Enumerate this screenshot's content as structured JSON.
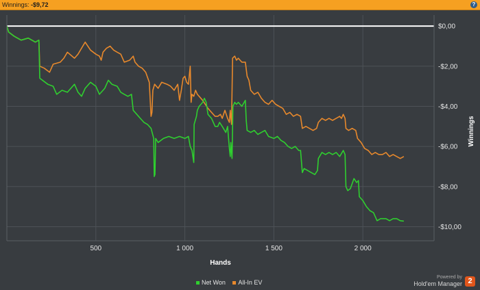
{
  "window": {
    "title_label": "Winnings:",
    "title_value": "-$9,72",
    "help_symbol": "?"
  },
  "chart_data": {
    "type": "line",
    "title": "",
    "xlabel": "Hands",
    "ylabel": "Winnings",
    "xlim": [
      0,
      2400
    ],
    "ylim": [
      -10.7,
      0.55
    ],
    "x_ticks": [
      500,
      1000,
      1500,
      2000
    ],
    "x_tick_labels": [
      "500",
      "1 000",
      "1 500",
      "2 000"
    ],
    "y_ticks": [
      0,
      -2,
      -4,
      -6,
      -8,
      -10
    ],
    "y_tick_labels": [
      "$0,00",
      "-$2,00",
      "-$4,00",
      "-$6,00",
      "-$8,00",
      "-$10,00"
    ],
    "grid": true,
    "legend_position": "bottom",
    "zero_line": {
      "y": 0,
      "color": "#ffffff"
    },
    "series": [
      {
        "name": "Net Won",
        "color": "#2fcf2f",
        "points": [
          [
            0,
            0
          ],
          [
            10,
            -0.3
          ],
          [
            40,
            -0.5
          ],
          [
            80,
            -0.7
          ],
          [
            120,
            -0.6
          ],
          [
            160,
            -0.8
          ],
          [
            180,
            -0.7
          ],
          [
            185,
            -2.6
          ],
          [
            200,
            -2.7
          ],
          [
            230,
            -2.9
          ],
          [
            260,
            -3
          ],
          [
            280,
            -3.4
          ],
          [
            310,
            -3.2
          ],
          [
            340,
            -3.3
          ],
          [
            380,
            -2.9
          ],
          [
            400,
            -3.3
          ],
          [
            420,
            -3.5
          ],
          [
            440,
            -3.1
          ],
          [
            470,
            -2.8
          ],
          [
            500,
            -3
          ],
          [
            520,
            -3.4
          ],
          [
            550,
            -3.1
          ],
          [
            570,
            -2.7
          ],
          [
            590,
            -2.9
          ],
          [
            620,
            -3
          ],
          [
            640,
            -3.3
          ],
          [
            660,
            -3.4
          ],
          [
            680,
            -3.5
          ],
          [
            700,
            -3.4
          ],
          [
            710,
            -4.2
          ],
          [
            730,
            -4.4
          ],
          [
            750,
            -4.6
          ],
          [
            770,
            -4.8
          ],
          [
            790,
            -4.9
          ],
          [
            810,
            -5.1
          ],
          [
            825,
            -5.6
          ],
          [
            828,
            -7.5
          ],
          [
            832,
            -7.4
          ],
          [
            836,
            -5.6
          ],
          [
            850,
            -5.8
          ],
          [
            880,
            -5.6
          ],
          [
            910,
            -5.5
          ],
          [
            940,
            -5.6
          ],
          [
            970,
            -5.5
          ],
          [
            1000,
            -5.6
          ],
          [
            1020,
            -5.5
          ],
          [
            1030,
            -6
          ],
          [
            1040,
            -6.2
          ],
          [
            1050,
            -6.8
          ],
          [
            1052,
            -4.9
          ],
          [
            1065,
            -4.5
          ],
          [
            1070,
            -4.2
          ],
          [
            1080,
            -4
          ],
          [
            1100,
            -3.8
          ],
          [
            1110,
            -3.6
          ],
          [
            1120,
            -3.8
          ],
          [
            1130,
            -4.4
          ],
          [
            1150,
            -4.6
          ],
          [
            1170,
            -5
          ],
          [
            1185,
            -5
          ],
          [
            1195,
            -4.8
          ],
          [
            1210,
            -5
          ],
          [
            1230,
            -5.3
          ],
          [
            1240,
            -5
          ],
          [
            1250,
            -6.1
          ],
          [
            1255,
            -6.5
          ],
          [
            1258,
            -5.8
          ],
          [
            1265,
            -6.6
          ],
          [
            1270,
            -4
          ],
          [
            1280,
            -3.8
          ],
          [
            1290,
            -3.9
          ],
          [
            1300,
            -3.8
          ],
          [
            1320,
            -4
          ],
          [
            1340,
            -3.7
          ],
          [
            1345,
            -4.7
          ],
          [
            1350,
            -5.2
          ],
          [
            1370,
            -5.3
          ],
          [
            1390,
            -5.2
          ],
          [
            1410,
            -5.4
          ],
          [
            1430,
            -5.3
          ],
          [
            1450,
            -5.2
          ],
          [
            1470,
            -5.5
          ],
          [
            1500,
            -5.6
          ],
          [
            1520,
            -5.5
          ],
          [
            1540,
            -5.7
          ],
          [
            1560,
            -5.8
          ],
          [
            1580,
            -6
          ],
          [
            1600,
            -6.1
          ],
          [
            1620,
            -6
          ],
          [
            1640,
            -6.2
          ],
          [
            1650,
            -6.2
          ],
          [
            1660,
            -7.3
          ],
          [
            1670,
            -7.1
          ],
          [
            1690,
            -7.2
          ],
          [
            1710,
            -7.3
          ],
          [
            1730,
            -7.4
          ],
          [
            1745,
            -7.2
          ],
          [
            1750,
            -6.6
          ],
          [
            1770,
            -6.3
          ],
          [
            1790,
            -6.4
          ],
          [
            1810,
            -6.3
          ],
          [
            1830,
            -6.4
          ],
          [
            1850,
            -6.3
          ],
          [
            1870,
            -6.5
          ],
          [
            1890,
            -6.2
          ],
          [
            1900,
            -6.4
          ],
          [
            1905,
            -8
          ],
          [
            1915,
            -8.2
          ],
          [
            1930,
            -8.1
          ],
          [
            1950,
            -7.6
          ],
          [
            1965,
            -7.8
          ],
          [
            1975,
            -7.7
          ],
          [
            1980,
            -8.5
          ],
          [
            2000,
            -8.7
          ],
          [
            2020,
            -9
          ],
          [
            2040,
            -9.2
          ],
          [
            2060,
            -9.3
          ],
          [
            2080,
            -9.7
          ],
          [
            2100,
            -9.6
          ],
          [
            2130,
            -9.6
          ],
          [
            2150,
            -9.7
          ],
          [
            2170,
            -9.6
          ],
          [
            2190,
            -9.6
          ],
          [
            2210,
            -9.7
          ],
          [
            2230,
            -9.72
          ]
        ]
      },
      {
        "name": "All-In EV",
        "color": "#e8892c",
        "points": [
          [
            0,
            0
          ],
          [
            10,
            -0.3
          ],
          [
            40,
            -0.5
          ],
          [
            80,
            -0.7
          ],
          [
            120,
            -0.6
          ],
          [
            160,
            -0.8
          ],
          [
            180,
            -0.7
          ],
          [
            185,
            -2
          ],
          [
            210,
            -2.1
          ],
          [
            240,
            -2.3
          ],
          [
            260,
            -1.9
          ],
          [
            300,
            -1.8
          ],
          [
            320,
            -1.6
          ],
          [
            340,
            -1.3
          ],
          [
            380,
            -1.6
          ],
          [
            400,
            -1.4
          ],
          [
            420,
            -1.1
          ],
          [
            440,
            -0.8
          ],
          [
            470,
            -1.2
          ],
          [
            500,
            -1.4
          ],
          [
            520,
            -1.5
          ],
          [
            530,
            -1.7
          ],
          [
            540,
            -1.3
          ],
          [
            560,
            -1.1
          ],
          [
            580,
            -1
          ],
          [
            600,
            -1.2
          ],
          [
            620,
            -1.3
          ],
          [
            640,
            -1.4
          ],
          [
            660,
            -1.8
          ],
          [
            690,
            -1.7
          ],
          [
            710,
            -1.5
          ],
          [
            720,
            -1.8
          ],
          [
            740,
            -2
          ],
          [
            760,
            -2.1
          ],
          [
            780,
            -2.3
          ],
          [
            800,
            -2.8
          ],
          [
            810,
            -4.5
          ],
          [
            815,
            -4.3
          ],
          [
            820,
            -3.2
          ],
          [
            830,
            -2.9
          ],
          [
            850,
            -3.1
          ],
          [
            870,
            -2.8
          ],
          [
            900,
            -2.9
          ],
          [
            920,
            -3
          ],
          [
            940,
            -3.2
          ],
          [
            960,
            -2.9
          ],
          [
            970,
            -3.7
          ],
          [
            980,
            -3.2
          ],
          [
            990,
            -2.6
          ],
          [
            1000,
            -2.5
          ],
          [
            1010,
            -2.8
          ],
          [
            1020,
            -2.9
          ],
          [
            1030,
            -2
          ],
          [
            1035,
            -3.8
          ],
          [
            1040,
            -3.4
          ],
          [
            1050,
            -3.5
          ],
          [
            1060,
            -3.2
          ],
          [
            1070,
            -3.4
          ],
          [
            1080,
            -3.5
          ],
          [
            1100,
            -3.7
          ],
          [
            1130,
            -4.1
          ],
          [
            1150,
            -4.3
          ],
          [
            1170,
            -4.5
          ],
          [
            1185,
            -4.5
          ],
          [
            1200,
            -4.4
          ],
          [
            1210,
            -4.6
          ],
          [
            1225,
            -4.2
          ],
          [
            1240,
            -4.6
          ],
          [
            1250,
            -4.8
          ],
          [
            1255,
            -4.2
          ],
          [
            1262,
            -4.9
          ],
          [
            1268,
            -1.6
          ],
          [
            1280,
            -1.5
          ],
          [
            1290,
            -1.7
          ],
          [
            1300,
            -1.6
          ],
          [
            1320,
            -1.8
          ],
          [
            1340,
            -1.8
          ],
          [
            1350,
            -2.5
          ],
          [
            1360,
            -2.7
          ],
          [
            1370,
            -3.2
          ],
          [
            1390,
            -3.4
          ],
          [
            1410,
            -3.3
          ],
          [
            1430,
            -3.6
          ],
          [
            1450,
            -3.8
          ],
          [
            1470,
            -3.9
          ],
          [
            1490,
            -3.7
          ],
          [
            1510,
            -3.9
          ],
          [
            1530,
            -4
          ],
          [
            1550,
            -4.1
          ],
          [
            1570,
            -4.4
          ],
          [
            1590,
            -4.3
          ],
          [
            1610,
            -4.5
          ],
          [
            1630,
            -4.4
          ],
          [
            1650,
            -4.5
          ],
          [
            1660,
            -5.1
          ],
          [
            1680,
            -5
          ],
          [
            1700,
            -5.1
          ],
          [
            1720,
            -5.2
          ],
          [
            1740,
            -5.1
          ],
          [
            1750,
            -4.8
          ],
          [
            1770,
            -4.6
          ],
          [
            1790,
            -4.7
          ],
          [
            1810,
            -4.6
          ],
          [
            1830,
            -4.7
          ],
          [
            1850,
            -4.6
          ],
          [
            1870,
            -4.5
          ],
          [
            1880,
            -4.6
          ],
          [
            1890,
            -4.4
          ],
          [
            1900,
            -4.6
          ],
          [
            1905,
            -5.1
          ],
          [
            1920,
            -5.2
          ],
          [
            1940,
            -5.1
          ],
          [
            1960,
            -5.2
          ],
          [
            1970,
            -5.6
          ],
          [
            1990,
            -5.8
          ],
          [
            2010,
            -6.1
          ],
          [
            2030,
            -6.2
          ],
          [
            2050,
            -6.4
          ],
          [
            2070,
            -6.3
          ],
          [
            2090,
            -6.4
          ],
          [
            2110,
            -6.4
          ],
          [
            2130,
            -6.3
          ],
          [
            2150,
            -6.5
          ],
          [
            2170,
            -6.4
          ],
          [
            2190,
            -6.5
          ],
          [
            2210,
            -6.6
          ],
          [
            2230,
            -6.5
          ]
        ]
      }
    ]
  },
  "legend": {
    "items": [
      {
        "label": "Net Won",
        "color": "#2fcf2f"
      },
      {
        "label": "All-In EV",
        "color": "#e8892c"
      }
    ]
  },
  "branding": {
    "powered_by": "Powered by",
    "product": "Hold'em Manager",
    "logo_glyph": "2"
  }
}
